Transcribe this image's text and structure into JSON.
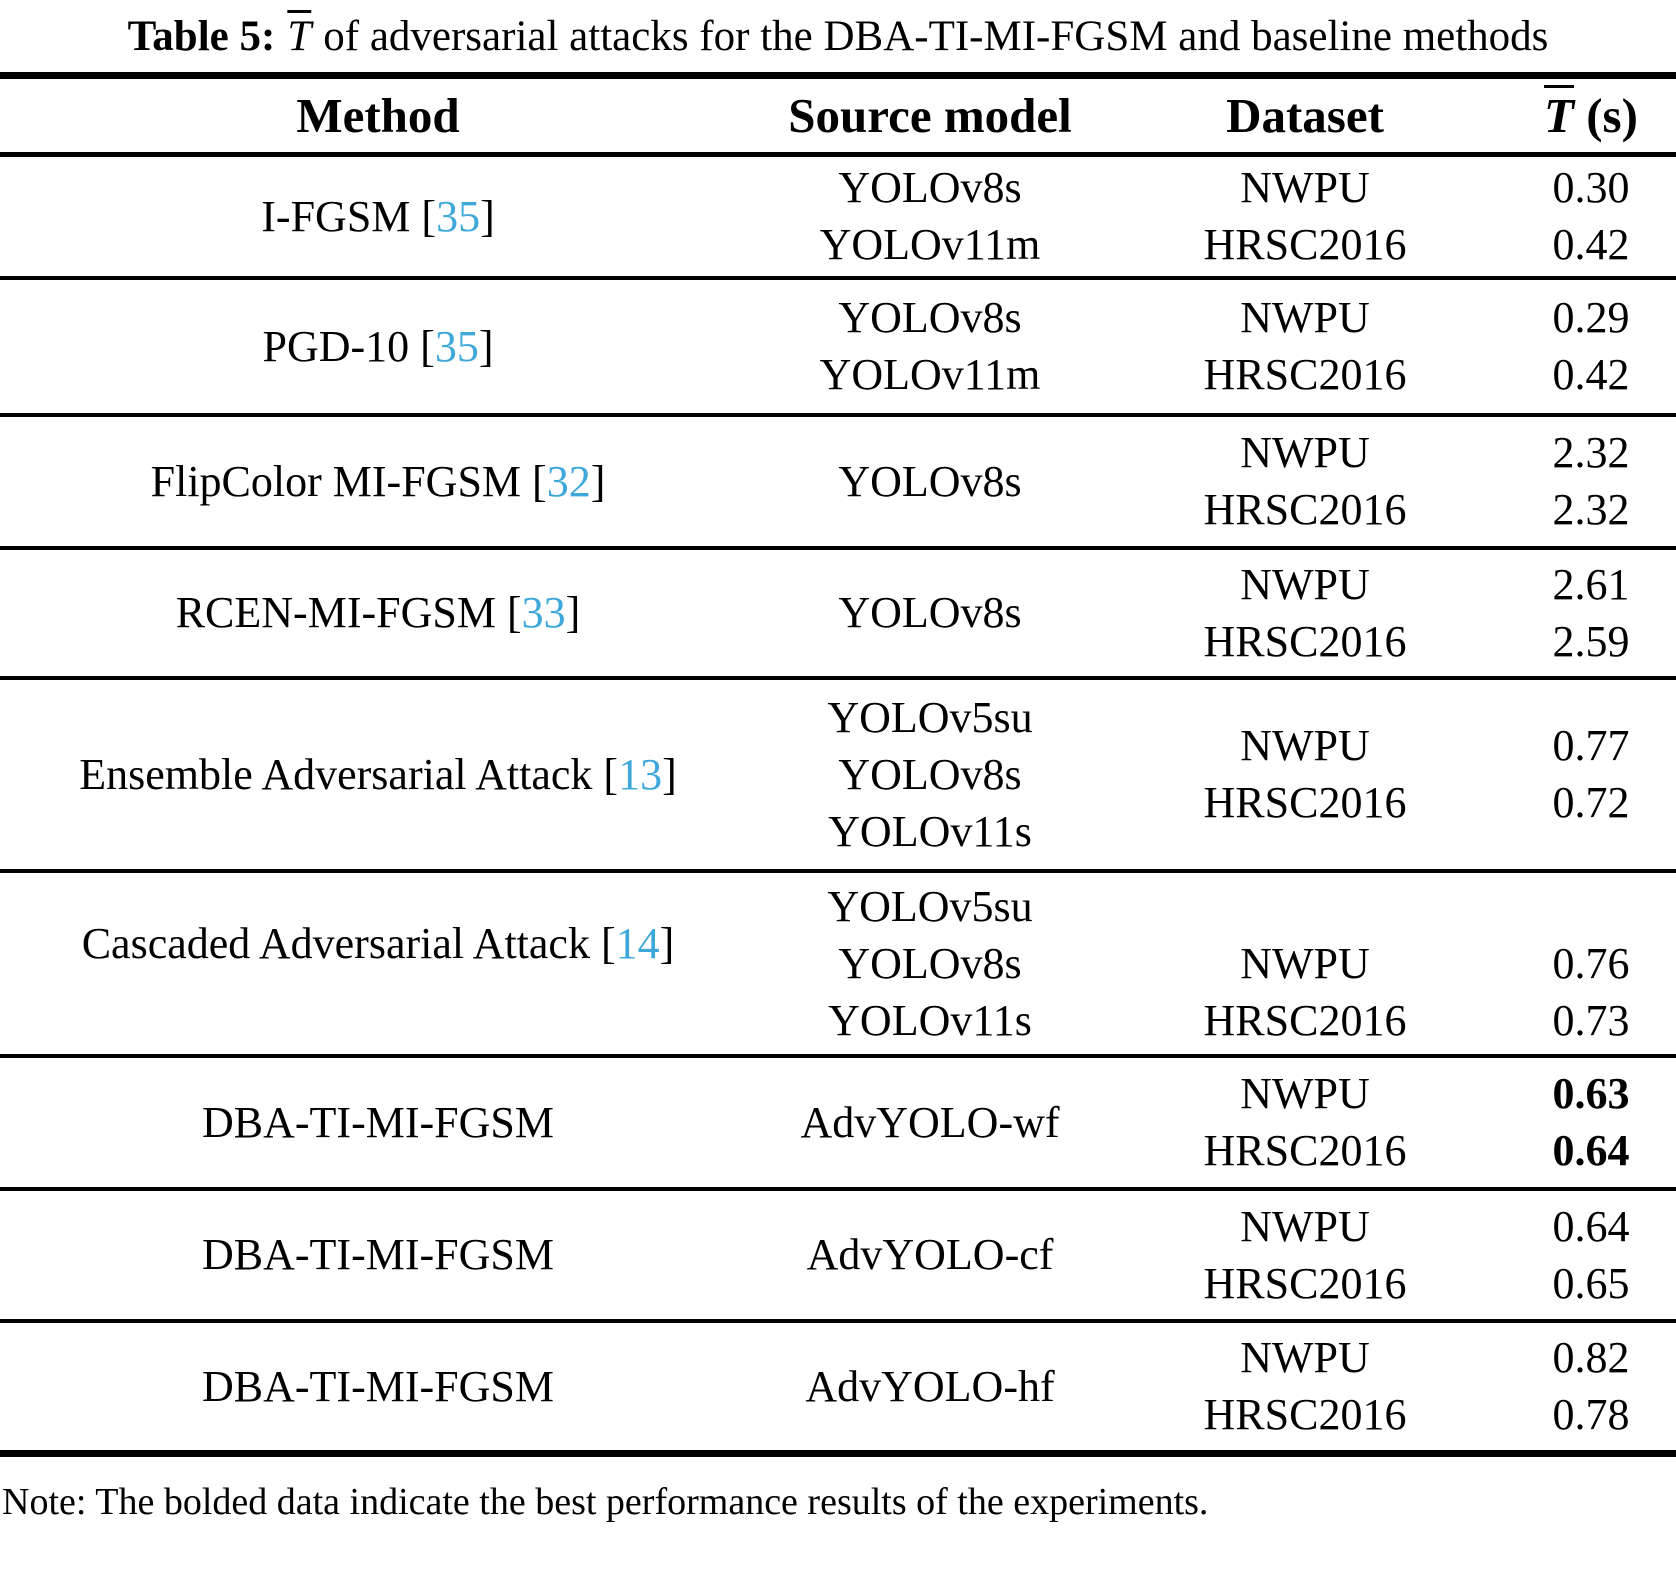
{
  "title": {
    "label": "Table 5:",
    "symbol": "T",
    "text": "of adversarial attacks for the DBA-TI-MI-FGSM and baseline methods"
  },
  "header": {
    "method": "Method",
    "source_model": "Source model",
    "dataset": "Dataset",
    "time_symbol": "T",
    "time_unit": "(s)"
  },
  "citation_brackets": {
    "open": "[",
    "close": "]"
  },
  "colors": {
    "citation": "#3FA8DB",
    "text": "#000000",
    "background": "#FFFFFF"
  },
  "rows": [
    {
      "method": "I-FGSM",
      "ref": "35",
      "source_models": [
        "YOLOv8s",
        "YOLOv11m"
      ],
      "datasets": [
        "NWPU",
        "HRSC2016"
      ],
      "times": [
        "0.30",
        "0.42"
      ],
      "best": false
    },
    {
      "method": "PGD-10",
      "ref": "35",
      "source_models": [
        "YOLOv8s",
        "YOLOv11m"
      ],
      "datasets": [
        "NWPU",
        "HRSC2016"
      ],
      "times": [
        "0.29",
        "0.42"
      ],
      "best": false
    },
    {
      "method": "FlipColor MI-FGSM",
      "ref": "32",
      "source_models": [
        "YOLOv8s"
      ],
      "datasets": [
        "NWPU",
        "HRSC2016"
      ],
      "times": [
        "2.32",
        "2.32"
      ],
      "best": false
    },
    {
      "method": "RCEN-MI-FGSM",
      "ref": "33",
      "source_models": [
        "YOLOv8s"
      ],
      "datasets": [
        "NWPU",
        "HRSC2016"
      ],
      "times": [
        "2.61",
        "2.59"
      ],
      "best": false
    },
    {
      "method": "Ensemble Adversarial Attack",
      "ref": "13",
      "source_models": [
        "YOLOv5su",
        "YOLOv8s",
        "YOLOv11s"
      ],
      "datasets": [
        "NWPU",
        "HRSC2016"
      ],
      "times": [
        "0.77",
        "0.72"
      ],
      "best": false
    },
    {
      "method": "Cascaded Adversarial Attack",
      "ref": "14",
      "source_models": [
        "YOLOv5su",
        "YOLOv8s",
        "YOLOv11s"
      ],
      "datasets": [
        "NWPU",
        "HRSC2016"
      ],
      "times": [
        "0.76",
        "0.73"
      ],
      "best": false
    },
    {
      "method": "DBA-TI-MI-FGSM",
      "ref": null,
      "source_models": [
        "AdvYOLO-wf"
      ],
      "datasets": [
        "NWPU",
        "HRSC2016"
      ],
      "times": [
        "0.63",
        "0.64"
      ],
      "best": true
    },
    {
      "method": "DBA-TI-MI-FGSM",
      "ref": null,
      "source_models": [
        "AdvYOLO-cf"
      ],
      "datasets": [
        "NWPU",
        "HRSC2016"
      ],
      "times": [
        "0.64",
        "0.65"
      ],
      "best": false
    },
    {
      "method": "DBA-TI-MI-FGSM",
      "ref": null,
      "source_models": [
        "AdvYOLO-hf"
      ],
      "datasets": [
        "NWPU",
        "HRSC2016"
      ],
      "times": [
        "0.82",
        "0.78"
      ],
      "best": false
    }
  ],
  "note": "Note: The bolded data indicate the best performance results of the experiments."
}
